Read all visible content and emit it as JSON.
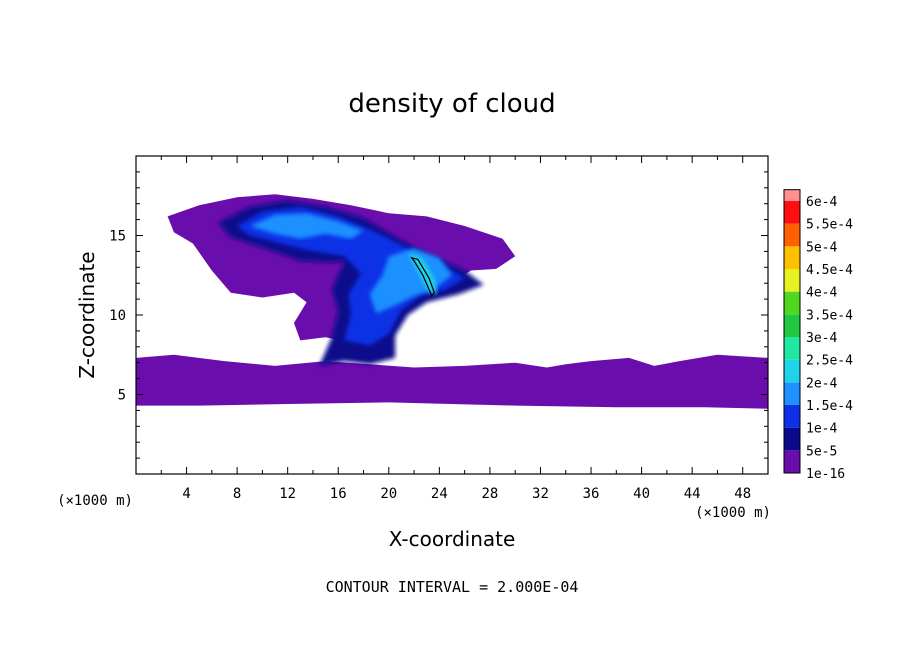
{
  "chart_data": {
    "type": "heatmap",
    "title": "density of cloud",
    "xlabel": "X-coordinate",
    "ylabel": "Z-coordinate",
    "x_unit": "(×1000 m)",
    "y_unit": "(×1000 m)",
    "xlim": [
      0,
      50
    ],
    "ylim": [
      0,
      20
    ],
    "x_ticks": [
      4,
      8,
      12,
      16,
      20,
      24,
      28,
      32,
      36,
      40,
      44,
      48
    ],
    "y_ticks": [
      5,
      10,
      15
    ],
    "grid": false,
    "caption": "CONTOUR INTERVAL = 2.000E-04",
    "colorbar": {
      "placement": "right",
      "levels": [
        {
          "label": "1e-16",
          "color": "#6a0dad"
        },
        {
          "label": "5e-5",
          "color": "#0a0a8c"
        },
        {
          "label": "1e-4",
          "color": "#1030e6"
        },
        {
          "label": "1.5e-4",
          "color": "#1e90ff"
        },
        {
          "label": "2e-4",
          "color": "#20d4e8"
        },
        {
          "label": "2.5e-4",
          "color": "#20e8a0"
        },
        {
          "label": "3e-4",
          "color": "#20c840"
        },
        {
          "label": "3.5e-4",
          "color": "#50d820"
        },
        {
          "label": "4e-4",
          "color": "#e8f020"
        },
        {
          "label": "4.5e-4",
          "color": "#ffc000"
        },
        {
          "label": "5e-4",
          "color": "#ff6000"
        },
        {
          "label": "5.5e-4",
          "color": "#ff1010"
        },
        {
          "label": "6e-4",
          "color": "#ff9090"
        }
      ]
    },
    "regions": [
      {
        "level": "1e-16",
        "description": "broad cloud anvil and low cloud layer",
        "polygons": [
          [
            [
              2.5,
              16.2
            ],
            [
              5,
              16.9
            ],
            [
              8,
              17.4
            ],
            [
              11,
              17.6
            ],
            [
              14,
              17.3
            ],
            [
              17,
              16.9
            ],
            [
              20,
              16.4
            ],
            [
              23,
              16.2
            ],
            [
              26,
              15.6
            ],
            [
              29,
              14.8
            ],
            [
              30,
              13.7
            ],
            [
              28.5,
              12.9
            ],
            [
              26.5,
              12.8
            ],
            [
              24.5,
              11.8
            ],
            [
              22.5,
              11
            ],
            [
              20.5,
              10.3
            ],
            [
              19.5,
              9.3
            ],
            [
              19.5,
              8.4
            ],
            [
              17.5,
              8.2
            ],
            [
              15,
              8.6
            ],
            [
              13,
              8.4
            ],
            [
              12.5,
              9.5
            ],
            [
              13.5,
              10.8
            ],
            [
              12.5,
              11.4
            ],
            [
              10,
              11.1
            ],
            [
              7.5,
              11.4
            ],
            [
              6,
              12.8
            ],
            [
              4.5,
              14.5
            ],
            [
              3,
              15.2
            ]
          ],
          [
            [
              0,
              7.3
            ],
            [
              3,
              7.5
            ],
            [
              7,
              7.1
            ],
            [
              11,
              6.8
            ],
            [
              15,
              7.1
            ],
            [
              18.5,
              6.9
            ],
            [
              22,
              6.7
            ],
            [
              26,
              6.8
            ],
            [
              30,
              7
            ],
            [
              32.5,
              6.7
            ],
            [
              34,
              6.9
            ],
            [
              36,
              7.1
            ],
            [
              39,
              7.3
            ],
            [
              41,
              6.8
            ],
            [
              43,
              7.1
            ],
            [
              46,
              7.5
            ],
            [
              50,
              7.3
            ],
            [
              50,
              4.1
            ],
            [
              45,
              4.2
            ],
            [
              38,
              4.2
            ],
            [
              30,
              4.3
            ],
            [
              20,
              4.5
            ],
            [
              12,
              4.4
            ],
            [
              5,
              4.3
            ],
            [
              0,
              4.3
            ]
          ]
        ]
      },
      {
        "level": "5e-5",
        "description": "outer core of anvil and updraft column",
        "polygons": [
          [
            [
              6.5,
              15.8
            ],
            [
              9,
              16.8
            ],
            [
              12,
              17.2
            ],
            [
              15,
              16.8
            ],
            [
              18,
              16.1
            ],
            [
              21,
              14.7
            ],
            [
              23.5,
              13.7
            ],
            [
              26,
              12.8
            ],
            [
              27.5,
              11.9
            ],
            [
              25.5,
              11.3
            ],
            [
              23,
              10.8
            ],
            [
              21.5,
              10
            ],
            [
              20.5,
              8.7
            ],
            [
              20.5,
              7.3
            ],
            [
              18.5,
              6.9
            ],
            [
              16.5,
              7.1
            ],
            [
              14.5,
              6.8
            ],
            [
              15.5,
              8.6
            ],
            [
              16,
              10.3
            ],
            [
              15.5,
              11.6
            ],
            [
              16.5,
              13.4
            ],
            [
              15.5,
              13.3
            ],
            [
              13,
              13.4
            ],
            [
              10.5,
              14.1
            ],
            [
              7.5,
              14.9
            ]
          ]
        ]
      },
      {
        "level": "1e-4",
        "description": "anvil core and updraft",
        "polygons": [
          [
            [
              8,
              15.6
            ],
            [
              10,
              16.5
            ],
            [
              13,
              16.8
            ],
            [
              16,
              16.2
            ],
            [
              19,
              15.2
            ],
            [
              21.5,
              14.2
            ],
            [
              24,
              13.3
            ],
            [
              26,
              12.3
            ],
            [
              24.5,
              11.6
            ],
            [
              22.5,
              11.2
            ],
            [
              21,
              10.3
            ],
            [
              20,
              8.8
            ],
            [
              18.5,
              8.1
            ],
            [
              16.5,
              8.4
            ],
            [
              17,
              10.1
            ],
            [
              16.8,
              11.3
            ],
            [
              17.8,
              12.6
            ],
            [
              16.5,
              13.7
            ],
            [
              13.5,
              14.1
            ],
            [
              11,
              14.6
            ],
            [
              9,
              15
            ]
          ]
        ]
      },
      {
        "level": "1.5e-4",
        "description": "high-density anvil streaks",
        "polygons": [
          [
            [
              9,
              15.6
            ],
            [
              11,
              16.3
            ],
            [
              13.5,
              16.4
            ],
            [
              16,
              15.9
            ],
            [
              18,
              15.3
            ],
            [
              17,
              14.8
            ],
            [
              15,
              15.1
            ],
            [
              13,
              14.8
            ],
            [
              11,
              15.1
            ]
          ],
          [
            [
              20,
              13.7
            ],
            [
              22,
              14.2
            ],
            [
              24,
              13.6
            ],
            [
              25,
              12.5
            ],
            [
              23.5,
              11.6
            ],
            [
              22,
              11.2
            ],
            [
              20.5,
              10.6
            ],
            [
              19,
              10.1
            ],
            [
              18.5,
              11.3
            ],
            [
              19.5,
              12.5
            ]
          ]
        ]
      },
      {
        "level": "2e-4",
        "description": "peak density zone",
        "polygons": [
          [
            [
              21.5,
              13.9
            ],
            [
              22.6,
              13.6
            ],
            [
              23.6,
              12.3
            ],
            [
              23.8,
              11.3
            ],
            [
              23.2,
              11.4
            ],
            [
              22.4,
              12.6
            ]
          ]
        ]
      }
    ],
    "contours": [
      {
        "level": "2e-4",
        "points": [
          [
            21.8,
            13.6
          ],
          [
            22.3,
            13.5
          ],
          [
            23.2,
            12.3
          ],
          [
            23.6,
            11.4
          ],
          [
            23.4,
            11.2
          ],
          [
            22.7,
            12.5
          ],
          [
            22,
            13.4
          ]
        ]
      }
    ]
  }
}
